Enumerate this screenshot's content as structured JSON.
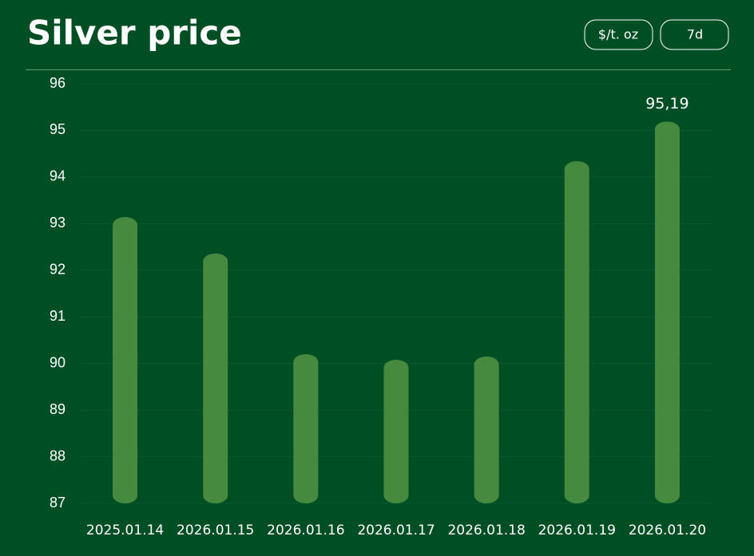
{
  "chart_data": {
    "type": "bar",
    "title": "Silver price",
    "controls": [
      "$/t. oz",
      "7d"
    ],
    "categories": [
      "2025.01.14",
      "2026.01.15",
      "2026.01.16",
      "2026.01.17",
      "2026.01.18",
      "2026.01.19",
      "2026.01.20"
    ],
    "values": [
      93.14,
      92.36,
      90.2,
      90.08,
      90.15,
      94.34,
      95.19
    ],
    "value_labels": [
      null,
      null,
      null,
      null,
      null,
      null,
      "95,19"
    ],
    "color": "#468a3f",
    "ylim": [
      87,
      96
    ],
    "yticks": [
      87,
      88,
      89,
      90,
      91,
      92,
      93,
      94,
      95,
      96
    ],
    "grid": true
  }
}
